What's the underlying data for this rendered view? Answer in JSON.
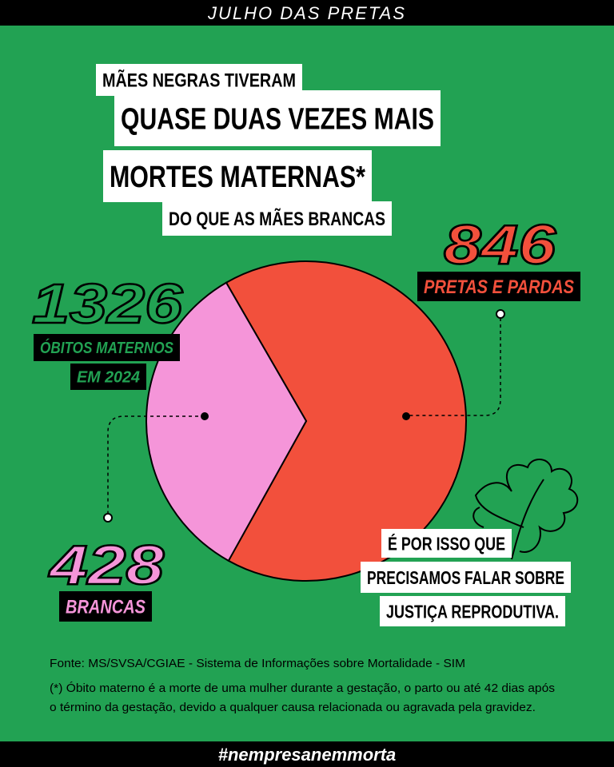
{
  "header": "JULHO DAS PRETAS",
  "footer": "#nempresanemmorta",
  "chart_data": {
    "type": "pie",
    "title_lines": [
      "MÃES NEGRAS TIVERAM",
      "QUASE DUAS VEZES MAIS",
      "MORTES MATERNAS*",
      "DO QUE AS MÃES BRANCAS"
    ],
    "total": 1326,
    "total_label": [
      "ÓBITOS MATERNOS",
      "EM 2024"
    ],
    "categories": [
      "PRETAS E PARDAS",
      "BRANCAS"
    ],
    "values": [
      846,
      428
    ],
    "colors": [
      "#f2503c",
      "#f595d9"
    ],
    "note_lines": [
      "É POR ISSO QUE",
      "PRECISAMOS FALAR SOBRE",
      "JUSTIÇA REPRODUTIVA."
    ],
    "source": "Fonte: MS/SVSA/CGIAE - Sistema de Informações sobre Mortalidade - SIM",
    "footnote": [
      "(*) Óbito materno é a morte de uma mulher durante a gestação, o parto ou até 42 dias após",
      "o término da gestação, devido a qualquer causa relacionada ou agravada pela gravidez."
    ]
  }
}
